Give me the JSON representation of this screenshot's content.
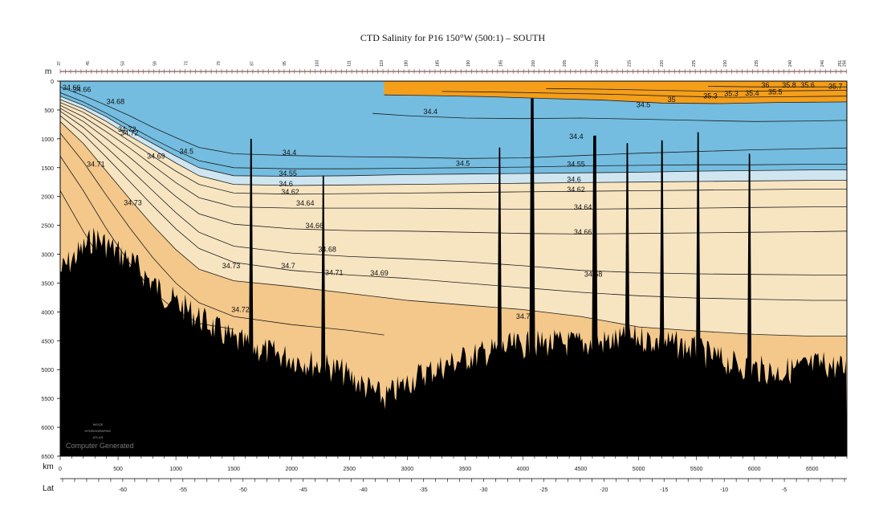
{
  "title": "CTD Salinity for P16 150°W (500:1) – SOUTH",
  "logo_lines": [
    "WOCE",
    "HYDROGRAPHIC",
    "ATLAS"
  ],
  "footer_note": "Computer Generated",
  "colors": {
    "band_34_4": "#1c8ac8",
    "band_34_5": "#74bde0",
    "band_34_6": "#cfe6f1",
    "band_34_7": "#f7e5c2",
    "band_high": "#f3c88a",
    "surface_high": "#f59e1a",
    "bathymetry": "#000000",
    "contour": "#1e1e1e"
  },
  "chart_data": {
    "type": "section",
    "variable": "CTD Salinity",
    "xaxis": {
      "label": "km",
      "range": [
        0,
        6800
      ],
      "ticks": [
        0,
        500,
        1000,
        1500,
        2000,
        2500,
        3000,
        3500,
        4000,
        4500,
        5000,
        5500,
        6000,
        6500
      ]
    },
    "yaxis": {
      "label": "m",
      "range": [
        0,
        6500
      ],
      "reversed": true,
      "ticks": [
        0,
        500,
        1000,
        1500,
        2000,
        2500,
        3000,
        3500,
        4000,
        4500,
        5000,
        5500,
        6000,
        6500
      ]
    },
    "lat_axis": {
      "label": "Lat",
      "ticks": [
        -60,
        -55,
        -50,
        -45,
        -40,
        -35,
        -30,
        -25,
        -20,
        -15,
        -10,
        -5
      ]
    },
    "station_axis": {
      "labels": [
        "37",
        "45",
        "53",
        "59",
        "73",
        "79",
        "87",
        "95",
        "103",
        "111",
        "119",
        "180",
        "185",
        "190",
        "195",
        "200",
        "205",
        "210",
        "215",
        "220",
        "225",
        "230",
        "235",
        "240",
        "246",
        "251",
        "256"
      ],
      "km": [
        0,
        250,
        550,
        830,
        1100,
        1380,
        1670,
        1950,
        2230,
        2510,
        2790,
        3000,
        3270,
        3540,
        3820,
        4100,
        4370,
        4650,
        4930,
        5210,
        5490,
        5760,
        6030,
        6320,
        6600,
        6750,
        6790
      ]
    },
    "contour_levels": [
      34.4,
      34.5,
      34.55,
      34.6,
      34.62,
      34.64,
      34.66,
      34.68,
      34.69,
      34.7,
      34.71,
      34.72,
      34.73,
      35,
      35.3,
      35.4,
      35.5,
      35.6,
      35.8,
      36
    ],
    "contours": [
      {
        "level": 34.4,
        "x": [
          2700,
          3000,
          3500,
          4000,
          4500,
          5000,
          5500,
          6000,
          6500,
          6800
        ],
        "y": [
          560,
          600,
          640,
          650,
          640,
          660,
          680,
          700,
          690,
          680
        ]
      },
      {
        "level": 34.4,
        "x": [
          0,
          200,
          400,
          600,
          800,
          1000,
          1200,
          1500,
          2000,
          2500,
          3000,
          3500,
          4000,
          4500,
          5000,
          5500,
          6000,
          6500,
          6800
        ],
        "y": [
          100,
          250,
          420,
          600,
          800,
          980,
          1150,
          1260,
          1290,
          1310,
          1320,
          1340,
          1330,
          1290,
          1250,
          1220,
          1190,
          1170,
          1160
        ]
      },
      {
        "level": 34.5,
        "x": [
          0,
          200,
          400,
          600,
          800,
          1000,
          1200,
          1500,
          2000,
          2500,
          3000,
          3500,
          4000,
          4500,
          5000,
          5500,
          6000,
          6500,
          6800
        ],
        "y": [
          200,
          360,
          560,
          780,
          1000,
          1200,
          1380,
          1500,
          1520,
          1520,
          1510,
          1500,
          1490,
          1470,
          1460,
          1450,
          1450,
          1440,
          1440
        ]
      },
      {
        "level": 34.55,
        "x": [
          0,
          200,
          400,
          600,
          800,
          1000,
          1200,
          1500,
          2000,
          2500,
          3000,
          3500,
          4000,
          4500,
          5000,
          5500,
          6000,
          6500,
          6800
        ],
        "y": [
          260,
          420,
          620,
          860,
          1080,
          1300,
          1500,
          1640,
          1650,
          1640,
          1620,
          1610,
          1600,
          1590,
          1580,
          1560,
          1550,
          1540,
          1540
        ]
      },
      {
        "level": 34.6,
        "x": [
          0,
          200,
          400,
          600,
          800,
          1000,
          1200,
          1500,
          2000,
          2500,
          3000,
          3500,
          4000,
          4500,
          5000,
          5500,
          6000,
          6500,
          6800
        ],
        "y": [
          320,
          480,
          700,
          950,
          1180,
          1420,
          1640,
          1790,
          1810,
          1800,
          1790,
          1780,
          1770,
          1760,
          1750,
          1740,
          1730,
          1720,
          1720
        ]
      },
      {
        "level": 34.62,
        "x": [
          0,
          200,
          400,
          600,
          800,
          1000,
          1200,
          1500,
          2000,
          2500,
          3000,
          3500,
          4000,
          4500,
          5000,
          5500,
          6000,
          6500,
          6800
        ],
        "y": [
          370,
          540,
          780,
          1040,
          1300,
          1560,
          1790,
          1940,
          1960,
          1950,
          1940,
          1930,
          1920,
          1910,
          1900,
          1890,
          1880,
          1870,
          1870
        ]
      },
      {
        "level": 34.64,
        "x": [
          0,
          200,
          400,
          600,
          800,
          1000,
          1200,
          1500,
          2000,
          2500,
          3000,
          3500,
          4000,
          4500,
          5000,
          5500,
          6000,
          6500,
          6800
        ],
        "y": [
          420,
          620,
          880,
          1160,
          1460,
          1760,
          2020,
          2180,
          2200,
          2200,
          2200,
          2210,
          2220,
          2220,
          2210,
          2200,
          2190,
          2180,
          2180
        ]
      },
      {
        "level": 34.66,
        "x": [
          0,
          200,
          400,
          600,
          800,
          1000,
          1200,
          1500,
          2000,
          2500,
          3000,
          3500,
          4000,
          4500,
          5000,
          5500,
          6000,
          6500,
          6800
        ],
        "y": [
          470,
          700,
          1000,
          1320,
          1660,
          2000,
          2300,
          2480,
          2560,
          2590,
          2600,
          2620,
          2640,
          2650,
          2640,
          2630,
          2620,
          2610,
          2600
        ]
      },
      {
        "level": 34.68,
        "x": [
          0,
          200,
          400,
          600,
          800,
          1000,
          1200,
          1500,
          2000,
          2500,
          3000,
          3500,
          4000,
          4500,
          5000,
          5500,
          6000,
          6500,
          6800
        ],
        "y": [
          520,
          800,
          1150,
          1520,
          1900,
          2280,
          2620,
          2860,
          2980,
          3040,
          3080,
          3130,
          3200,
          3280,
          3320,
          3340,
          3350,
          3360,
          3360
        ]
      },
      {
        "level": 34.69,
        "x": [
          0,
          200,
          400,
          600,
          800,
          1000,
          1200,
          1500,
          2000,
          2500,
          3000,
          3500,
          4000,
          4500,
          5000,
          5500,
          6000,
          6500,
          6800
        ],
        "y": [
          600,
          920,
          1320,
          1740,
          2160,
          2560,
          2900,
          3140,
          3280,
          3360,
          3420,
          3500,
          3580,
          3660,
          3720,
          3760,
          3780,
          3800,
          3800
        ]
      },
      {
        "level": 34.7,
        "x": [
          0,
          200,
          400,
          600,
          800,
          1000,
          1200,
          1500,
          2000,
          2500,
          3000,
          3500,
          4000,
          4500,
          5000,
          5500,
          6000,
          6500,
          6800
        ],
        "y": [
          700,
          1080,
          1560,
          2040,
          2500,
          2920,
          3260,
          3460,
          3560,
          3680,
          3800,
          3880,
          3960,
          4080,
          4260,
          4330,
          4390,
          4420,
          4420
        ]
      },
      {
        "level": 34.71,
        "x": [
          0,
          200,
          400,
          600,
          800,
          1000,
          1200,
          1500,
          2000,
          2500,
          2800
        ],
        "y": [
          900,
          1400,
          1980,
          2540,
          3060,
          3500,
          3840,
          4080,
          4220,
          4320,
          4400
        ]
      },
      {
        "level": 34.72,
        "x": [
          0,
          200,
          400,
          600,
          800,
          1000,
          1200,
          1500
        ],
        "y": [
          1300,
          1900,
          2560,
          3160,
          3640,
          3980,
          4200,
          4300
        ]
      },
      {
        "level": 34.73,
        "x": [
          0,
          200,
          400,
          600,
          800,
          1000
        ],
        "y": [
          1900,
          2600,
          3260,
          3760,
          4100,
          4320
        ]
      },
      {
        "level": 35,
        "x": [
          2800,
          3200,
          3700,
          4200,
          4700,
          5200,
          5700,
          6200,
          6800
        ],
        "y": [
          240,
          250,
          270,
          300,
          330,
          380,
          390,
          370,
          360
        ]
      },
      {
        "level": 35.3,
        "x": [
          3300,
          3800,
          4300,
          4800,
          5300,
          5800,
          6300,
          6800
        ],
        "y": [
          180,
          190,
          210,
          230,
          260,
          280,
          270,
          260
        ]
      },
      {
        "level": 35.5,
        "x": [
          4200,
          4700,
          5200,
          5700,
          6200,
          6800
        ],
        "y": [
          130,
          140,
          160,
          180,
          170,
          160
        ]
      },
      {
        "level": 36,
        "x": [
          5600,
          6000,
          6400,
          6800
        ],
        "y": [
          90,
          100,
          100,
          100
        ]
      }
    ],
    "contour_labels": [
      {
        "text": "34.66",
        "x": 20,
        "y": 150
      },
      {
        "text": "34.66",
        "x": 110,
        "y": 190
      },
      {
        "text": "34.68",
        "x": 400,
        "y": 400
      },
      {
        "text": "34.72",
        "x": 500,
        "y": 880
      },
      {
        "text": "34.72",
        "x": 520,
        "y": 940
      },
      {
        "text": "34.71",
        "x": 230,
        "y": 1480
      },
      {
        "text": "34.69",
        "x": 750,
        "y": 1340
      },
      {
        "text": "34.5",
        "x": 1030,
        "y": 1260
      },
      {
        "text": "34.73",
        "x": 550,
        "y": 2150
      },
      {
        "text": "34.4",
        "x": 1920,
        "y": 1280
      },
      {
        "text": "34.55",
        "x": 1890,
        "y": 1640
      },
      {
        "text": "34.6",
        "x": 1890,
        "y": 1820
      },
      {
        "text": "34.62",
        "x": 1910,
        "y": 1960
      },
      {
        "text": "34.64",
        "x": 2040,
        "y": 2160
      },
      {
        "text": "34.66",
        "x": 2120,
        "y": 2550
      },
      {
        "text": "34.68",
        "x": 2230,
        "y": 2960
      },
      {
        "text": "34.73",
        "x": 1400,
        "y": 3240
      },
      {
        "text": "34.7",
        "x": 1910,
        "y": 3240
      },
      {
        "text": "34.71",
        "x": 2290,
        "y": 3360
      },
      {
        "text": "34.69",
        "x": 2680,
        "y": 3370
      },
      {
        "text": "34.72",
        "x": 1480,
        "y": 4000
      },
      {
        "text": "34.4",
        "x": 3140,
        "y": 570
      },
      {
        "text": "34.5",
        "x": 3420,
        "y": 1470
      },
      {
        "text": "34.4",
        "x": 4400,
        "y": 1000
      },
      {
        "text": "34.55",
        "x": 4380,
        "y": 1480
      },
      {
        "text": "34.6",
        "x": 4380,
        "y": 1750
      },
      {
        "text": "34.62",
        "x": 4380,
        "y": 1920
      },
      {
        "text": "34.64",
        "x": 4440,
        "y": 2230
      },
      {
        "text": "34.66",
        "x": 4440,
        "y": 2660
      },
      {
        "text": "34.68",
        "x": 4530,
        "y": 3390
      },
      {
        "text": "34.7",
        "x": 3940,
        "y": 4120
      },
      {
        "text": "34.5",
        "x": 4980,
        "y": 450
      },
      {
        "text": "35",
        "x": 5250,
        "y": 360
      },
      {
        "text": "35.3",
        "x": 5560,
        "y": 300
      },
      {
        "text": "35.3",
        "x": 5740,
        "y": 260
      },
      {
        "text": "35.4",
        "x": 5920,
        "y": 250
      },
      {
        "text": "35.5",
        "x": 6120,
        "y": 230
      },
      {
        "text": "36",
        "x": 6060,
        "y": 110
      },
      {
        "text": "35.8",
        "x": 6240,
        "y": 110
      },
      {
        "text": "35.6",
        "x": 6400,
        "y": 110
      },
      {
        "text": "35.7",
        "x": 6640,
        "y": 130
      }
    ]
  }
}
